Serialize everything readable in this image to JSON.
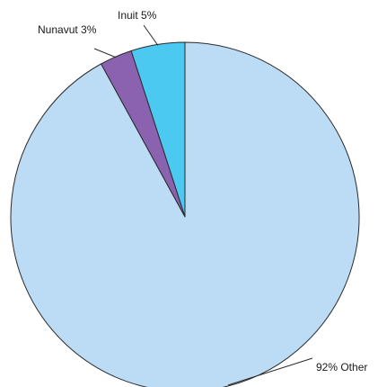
{
  "chart_data": {
    "type": "pie",
    "title": "",
    "slices": [
      {
        "label": "Inuit 5%",
        "category": "Inuit",
        "value": 5,
        "color": "#4cc9f0"
      },
      {
        "label": "Nunavut 3%",
        "category": "Nunavut",
        "value": 3,
        "color": "#8b62b0"
      },
      {
        "label": "92% Other",
        "category": "Other",
        "value": 92,
        "color": "#bcdcf5"
      }
    ],
    "start_angle_deg": 0,
    "direction": "counterclockwise",
    "legend": "none"
  }
}
